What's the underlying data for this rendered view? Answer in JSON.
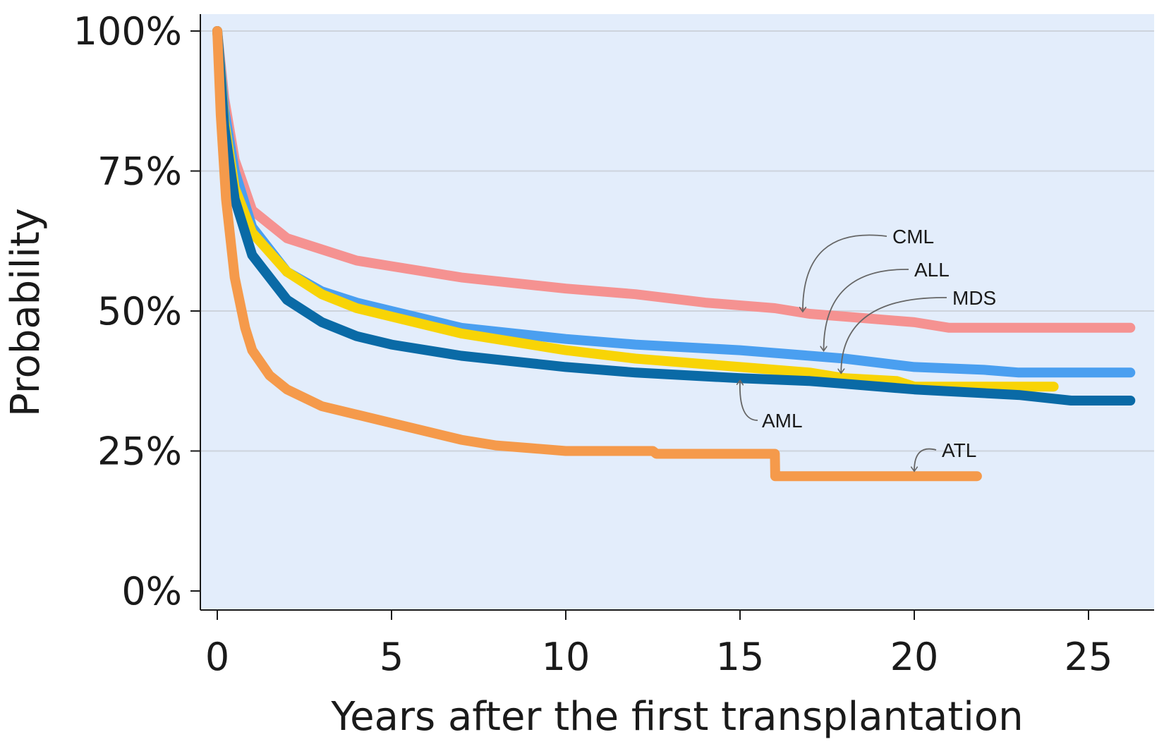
{
  "chart_data": {
    "type": "line",
    "title": "",
    "xlabel": "Years after the first transplantation",
    "ylabel": "Probability",
    "xlim": [
      -0.5,
      26.5
    ],
    "ylim": [
      0,
      100
    ],
    "x_ticks": [
      0,
      5,
      10,
      15,
      20,
      25
    ],
    "x_tick_labels": [
      "0",
      "5",
      "10",
      "15",
      "20",
      "25"
    ],
    "y_ticks": [
      0,
      25,
      50,
      75,
      100
    ],
    "y_tick_labels": [
      "0%",
      "25%",
      "50%",
      "75%",
      "100%"
    ],
    "grid": "horizontal",
    "background": "#e3edfb",
    "series": [
      {
        "name": "CML",
        "color": "#f59291",
        "x": [
          0,
          0.2,
          0.5,
          1,
          2,
          3,
          4,
          5,
          7,
          10,
          12,
          14,
          16,
          17,
          18,
          20,
          21,
          26.2
        ],
        "y": [
          100,
          88,
          77,
          68,
          63,
          61,
          59,
          58,
          56,
          54,
          53,
          51.5,
          50.5,
          49.5,
          49,
          48,
          47,
          47
        ]
      },
      {
        "name": "ALL",
        "color": "#4a9ff0",
        "x": [
          0,
          0.2,
          0.5,
          1,
          2,
          3,
          4,
          5,
          7,
          10,
          12,
          15,
          17,
          18,
          20,
          22,
          23,
          26.2
        ],
        "y": [
          100,
          86,
          75,
          65,
          57,
          53.5,
          51.5,
          50,
          47,
          45,
          44,
          43,
          42,
          41.5,
          40,
          39.5,
          39,
          39
        ]
      },
      {
        "name": "MDS",
        "color": "#f8d406",
        "x": [
          0,
          0.2,
          0.5,
          1,
          2,
          3,
          4,
          5,
          7,
          10,
          12,
          15,
          17,
          18,
          19.5,
          20,
          24
        ],
        "y": [
          100,
          84,
          72,
          64,
          57,
          53,
          50.5,
          49,
          46,
          43,
          41.5,
          40,
          39,
          38,
          37.5,
          36.5,
          36.5
        ]
      },
      {
        "name": "AML",
        "color": "#0a6aa6",
        "x": [
          0,
          0.2,
          0.5,
          1,
          2,
          3,
          4,
          5,
          7,
          10,
          12,
          15,
          17,
          18,
          20,
          23,
          24.5,
          26.2
        ],
        "y": [
          100,
          83,
          70,
          60,
          52,
          48,
          45.5,
          44,
          42,
          40,
          39,
          38,
          37.5,
          37,
          36,
          35,
          34,
          34
        ]
      },
      {
        "name": "ATL",
        "color": "#f59a4b",
        "x": [
          0,
          0.1,
          0.25,
          0.5,
          0.8,
          1,
          1.5,
          2,
          3,
          4,
          5,
          6,
          7,
          8,
          9,
          10,
          12.5,
          12.6,
          16,
          16.01,
          21.8
        ],
        "y": [
          100,
          85,
          70,
          56,
          47,
          43,
          38.5,
          36,
          33,
          31.5,
          30,
          28.5,
          27,
          26,
          25.5,
          25,
          25,
          24.5,
          24.5,
          20.5,
          20.5
        ]
      }
    ],
    "annotations": [
      {
        "text": "CML",
        "points_to": [
          16.8,
          50
        ]
      },
      {
        "text": "ALL",
        "points_to": [
          17.4,
          43
        ]
      },
      {
        "text": "MDS",
        "points_to": [
          17.9,
          39
        ]
      },
      {
        "text": "AML",
        "points_to": [
          15,
          37.5
        ]
      },
      {
        "text": "ATL",
        "points_to": [
          20,
          21.5
        ]
      }
    ]
  }
}
